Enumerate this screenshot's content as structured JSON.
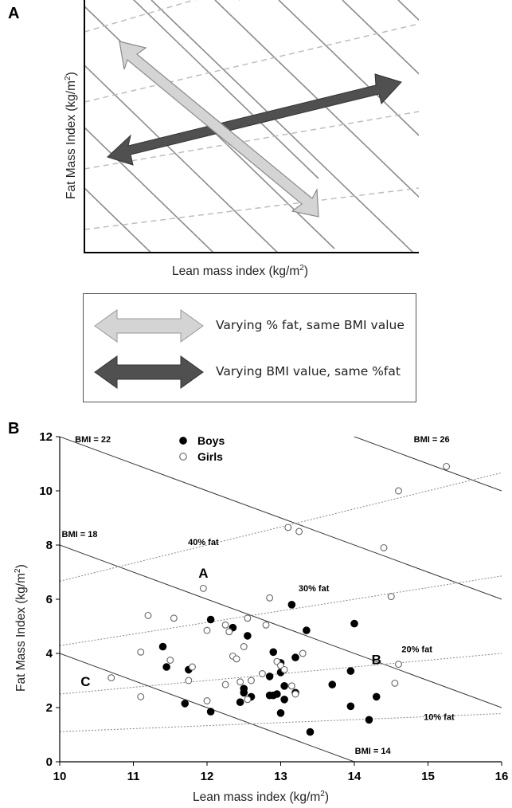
{
  "panel_a": {
    "letter": "A",
    "xlabel": "Lean mass index (kg/m",
    "xlabel_sup": "2",
    "xlabel_end": ")",
    "ylabel": "Fat Mass Index (kg/m",
    "ylabel_sup": "2",
    "ylabel_end": ")"
  },
  "legend": {
    "items": [
      {
        "text": "Varying % fat, same BMI value",
        "arrow_color": "#d4d4d4"
      },
      {
        "text": "Varying BMI value, same %fat",
        "arrow_color": "#505050"
      }
    ]
  },
  "panel_b": {
    "letter": "B",
    "xlabel": "Lean mass index (kg/m",
    "xlabel_sup": "2",
    "xlabel_end": ")",
    "ylabel": "Fat Mass Index (kg/m",
    "ylabel_sup": "2",
    "ylabel_end": ")"
  },
  "chart_data": [
    {
      "type": "diagram",
      "title": "",
      "xlabel": "Lean mass index (kg/m2)",
      "ylabel": "Fat Mass Index (kg/m2)",
      "solid_lines": "iso-BMI lines (negative slope)",
      "dashed_lines": "iso-%fat lines (positive slope)",
      "arrows": [
        {
          "color": "#d4d4d4",
          "meaning": "Varying % fat, same BMI value"
        },
        {
          "color": "#505050",
          "meaning": "Varying BMI value, same %fat"
        }
      ]
    },
    {
      "type": "scatter",
      "title": "",
      "xlabel": "Lean mass index (kg/m2)",
      "ylabel": "Fat Mass Index (kg/m2)",
      "xlim": [
        10,
        16
      ],
      "ylim": [
        0,
        12
      ],
      "xticks": [
        "10",
        "11",
        "12",
        "13",
        "14",
        "15",
        "16"
      ],
      "yticks": [
        "0",
        "2",
        "4",
        "6",
        "8",
        "10",
        "12"
      ],
      "legend": [
        "Boys",
        "Girls"
      ],
      "legend_position": "top-center",
      "bmi_lines": [
        {
          "label": "BMI = 14",
          "bmi": 14
        },
        {
          "label": "BMI = 18",
          "bmi": 18
        },
        {
          "label": "BMI = 22",
          "bmi": 22
        },
        {
          "label": "BMI = 26",
          "bmi": 26
        }
      ],
      "fat_lines": [
        {
          "label": "10% fat",
          "pct": 10
        },
        {
          "label": "20% fat",
          "pct": 20
        },
        {
          "label": "30% fat",
          "pct": 30
        },
        {
          "label": "40% fat",
          "pct": 40
        }
      ],
      "annotations": [
        {
          "text": "A",
          "x": 11.95,
          "y": 6.8
        },
        {
          "text": "B",
          "x": 14.3,
          "y": 3.6
        },
        {
          "text": "C",
          "x": 10.35,
          "y": 2.8
        }
      ],
      "series": [
        {
          "name": "Boys",
          "marker": "filled",
          "points": [
            [
              11.4,
              4.25
            ],
            [
              11.45,
              3.5
            ],
            [
              11.75,
              3.4
            ],
            [
              11.7,
              2.15
            ],
            [
              12.05,
              5.25
            ],
            [
              12.05,
              1.85
            ],
            [
              12.35,
              4.95
            ],
            [
              12.45,
              2.2
            ],
            [
              12.5,
              2.7
            ],
            [
              12.55,
              4.65
            ],
            [
              12.6,
              2.4
            ],
            [
              12.85,
              3.15
            ],
            [
              12.85,
              2.45
            ],
            [
              12.9,
              4.05
            ],
            [
              12.9,
              2.45
            ],
            [
              13.0,
              3.65
            ],
            [
              13.0,
              3.3
            ],
            [
              13.0,
              1.8
            ],
            [
              13.05,
              2.8
            ],
            [
              13.05,
              2.3
            ],
            [
              13.15,
              5.8
            ],
            [
              13.2,
              3.85
            ],
            [
              13.2,
              2.55
            ],
            [
              13.35,
              4.85
            ],
            [
              13.4,
              1.1
            ],
            [
              13.7,
              2.85
            ],
            [
              13.95,
              3.35
            ],
            [
              13.95,
              2.05
            ],
            [
              14.0,
              5.1
            ],
            [
              14.2,
              1.55
            ],
            [
              14.3,
              2.4
            ],
            [
              12.95,
              2.5
            ],
            [
              12.5,
              2.55
            ]
          ]
        },
        {
          "name": "Girls",
          "marker": "open",
          "points": [
            [
              10.7,
              3.1
            ],
            [
              11.1,
              4.05
            ],
            [
              11.1,
              2.4
            ],
            [
              11.2,
              5.4
            ],
            [
              11.55,
              5.3
            ],
            [
              11.5,
              3.75
            ],
            [
              11.75,
              3.0
            ],
            [
              11.8,
              3.5
            ],
            [
              11.95,
              6.4
            ],
            [
              12.0,
              4.85
            ],
            [
              12.0,
              2.25
            ],
            [
              12.25,
              5.05
            ],
            [
              12.25,
              2.85
            ],
            [
              12.3,
              4.8
            ],
            [
              12.35,
              3.9
            ],
            [
              12.4,
              3.8
            ],
            [
              12.45,
              2.95
            ],
            [
              12.5,
              4.25
            ],
            [
              12.55,
              5.3
            ],
            [
              12.55,
              2.3
            ],
            [
              12.6,
              3.0
            ],
            [
              12.75,
              3.25
            ],
            [
              12.8,
              5.05
            ],
            [
              12.85,
              6.05
            ],
            [
              12.95,
              3.7
            ],
            [
              13.0,
              3.55
            ],
            [
              13.05,
              3.4
            ],
            [
              13.15,
              2.8
            ],
            [
              13.2,
              2.5
            ],
            [
              13.3,
              4.0
            ],
            [
              13.1,
              8.65
            ],
            [
              13.25,
              8.5
            ],
            [
              14.4,
              7.9
            ],
            [
              14.5,
              6.1
            ],
            [
              14.55,
              2.9
            ],
            [
              14.6,
              3.6
            ],
            [
              14.6,
              10.0
            ],
            [
              15.25,
              10.9
            ]
          ]
        }
      ]
    }
  ]
}
